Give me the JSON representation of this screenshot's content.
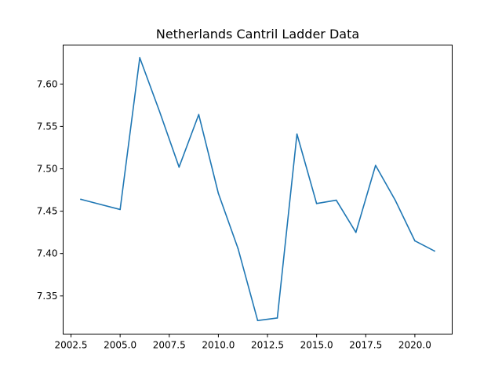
{
  "chart_data": {
    "type": "line",
    "title": "Netherlands Cantril Ladder Data",
    "xlabel": "",
    "ylabel": "",
    "xlim": [
      2002.1,
      2021.9
    ],
    "ylim": [
      7.305,
      7.646
    ],
    "grid": false,
    "legend": "none",
    "x_ticks": [
      2002.5,
      2005.0,
      2007.5,
      2010.0,
      2012.5,
      2015.0,
      2017.5,
      2020.0
    ],
    "x_tick_labels": [
      "2002.5",
      "2005.0",
      "2007.5",
      "2010.0",
      "2012.5",
      "2015.0",
      "2017.5",
      "2020.0"
    ],
    "y_ticks": [
      7.35,
      7.4,
      7.45,
      7.5,
      7.55,
      7.6
    ],
    "y_tick_labels": [
      "7.35",
      "7.40",
      "7.45",
      "7.50",
      "7.55",
      "7.60"
    ],
    "series": [
      {
        "color": "#1f77b4",
        "x": [
          2003,
          2005,
          2006,
          2007,
          2008,
          2009,
          2010,
          2011,
          2012,
          2013,
          2014,
          2015,
          2016,
          2017,
          2018,
          2019,
          2020,
          2021
        ],
        "y": [
          7.464,
          7.452,
          7.631,
          7.568,
          7.502,
          7.564,
          7.471,
          7.406,
          7.321,
          7.324,
          7.541,
          7.459,
          7.463,
          7.425,
          7.504,
          7.463,
          7.415,
          7.403
        ]
      }
    ]
  }
}
